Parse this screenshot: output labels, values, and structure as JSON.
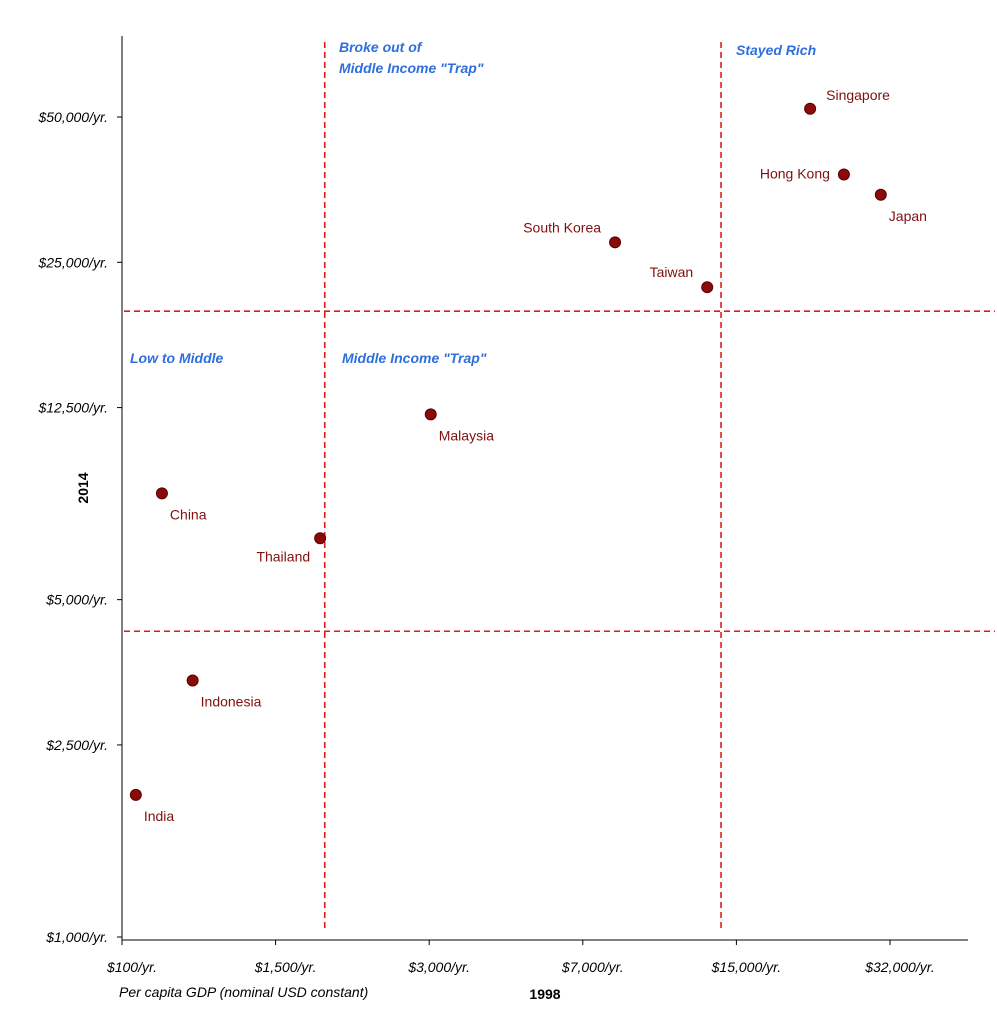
{
  "chart_data": {
    "type": "scatter",
    "title": "",
    "xlabel": "1998",
    "ylabel": "2014",
    "x_note": "Per capita GDP (nominal USD constant)",
    "x_scale": "categorical-ordinal",
    "y_scale": "log",
    "x_ticks": [
      "$100/yr.",
      "$1,500/yr.",
      "$3,000/yr.",
      "$7,000/yr.",
      "$15,000/yr.",
      "$32,000/yr."
    ],
    "y_ticks": [
      {
        "value": 1000,
        "label": "$1,000/yr."
      },
      {
        "value": 2500,
        "label": "$2,500/yr."
      },
      {
        "value": 5000,
        "label": "$5,000/yr."
      },
      {
        "value": 12500,
        "label": "$12,500/yr."
      },
      {
        "value": 25000,
        "label": "$25,000/yr."
      },
      {
        "value": 50000,
        "label": "$50,000/yr."
      }
    ],
    "x_tick_index": [
      0,
      1,
      2,
      3,
      4,
      5
    ],
    "xlim": [
      0,
      5.5
    ],
    "ylim": [
      1000,
      69000
    ],
    "thresholds": {
      "x": [
        1.32,
        3.9
      ],
      "y": [
        4300,
        19800
      ]
    },
    "quadrant_labels": [
      {
        "id": "stayed-rich",
        "lines": [
          "Stayed Rich"
        ]
      },
      {
        "id": "broke-out",
        "lines": [
          "Broke out of",
          "Middle Income \"Trap\""
        ]
      },
      {
        "id": "low-to-middle",
        "lines": [
          "Low to Middle"
        ]
      },
      {
        "id": "middle-trap",
        "lines": [
          "Middle Income \"Trap\""
        ]
      }
    ],
    "points": [
      {
        "name": "Singapore",
        "x": 4.48,
        "y": 52000,
        "label_side": "above-right"
      },
      {
        "name": "Hong Kong",
        "x": 4.7,
        "y": 38000,
        "label_side": "left"
      },
      {
        "name": "Japan",
        "x": 4.94,
        "y": 34500,
        "label_side": "below-right"
      },
      {
        "name": "South Korea",
        "x": 3.21,
        "y": 27500,
        "label_side": "above-left"
      },
      {
        "name": "Taiwan",
        "x": 3.81,
        "y": 22200,
        "label_side": "above-left"
      },
      {
        "name": "Malaysia",
        "x": 2.01,
        "y": 12100,
        "label_side": "below-right"
      },
      {
        "name": "China",
        "x": 0.26,
        "y": 8300,
        "label_side": "below-right"
      },
      {
        "name": "Thailand",
        "x": 1.29,
        "y": 6700,
        "label_side": "below-left"
      },
      {
        "name": "Indonesia",
        "x": 0.46,
        "y": 3400,
        "label_side": "below-right"
      },
      {
        "name": "India",
        "x": 0.09,
        "y": 1970,
        "label_side": "below-right"
      }
    ]
  },
  "colors": {
    "point": "#8b0a0a",
    "point_stroke": "#5a0000",
    "point_label": "#7f1010",
    "threshold_line": "#e31a1a",
    "quadrant_label": "#2f6fdd",
    "axis": "#000000"
  }
}
